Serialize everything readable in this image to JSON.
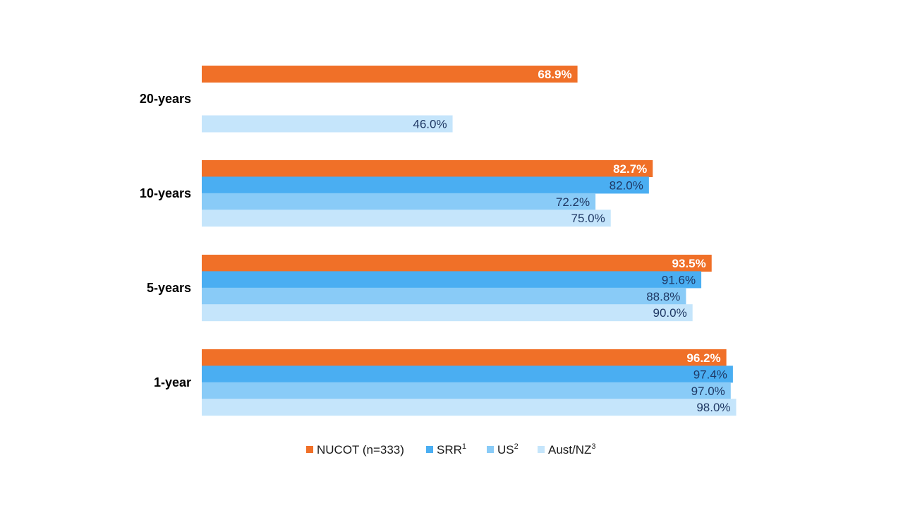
{
  "chart_data": {
    "type": "bar",
    "orientation": "horizontal",
    "categories": [
      "20-years",
      "10-years",
      "5-years",
      "1-year"
    ],
    "xlim": [
      0,
      100
    ],
    "grid": false,
    "legend_position": "bottom",
    "series": [
      {
        "name": "NUCOT (n=333)",
        "name_main": "NUCOT (n=333)",
        "sup": "",
        "color": "#f07028",
        "label_color": "#ffffff",
        "label_bold": true,
        "values": [
          68.9,
          82.7,
          93.5,
          96.2
        ],
        "labels": [
          "68.9%",
          "82.7%",
          "93.5%",
          "96.2%"
        ]
      },
      {
        "name": "SRR1",
        "name_main": "SRR",
        "sup": "1",
        "color": "#4aaef2",
        "label_color": "#1f3864",
        "label_bold": false,
        "values": [
          null,
          82.0,
          91.6,
          97.4
        ],
        "labels": [
          "",
          "82.0%",
          "91.6%",
          "97.4%"
        ]
      },
      {
        "name": "US2",
        "name_main": "US",
        "sup": "2",
        "color": "#89cbf7",
        "label_color": "#1f3864",
        "label_bold": false,
        "values": [
          null,
          72.2,
          88.8,
          97.0
        ],
        "labels": [
          "",
          "72.2%",
          "88.8%",
          "97.0%"
        ]
      },
      {
        "name": "Aust/NZ3",
        "name_main": "Aust/NZ",
        "sup": "3",
        "color": "#c5e5fb",
        "label_color": "#1f3864",
        "label_bold": false,
        "values": [
          46.0,
          75.0,
          90.0,
          98.0
        ],
        "labels": [
          "46.0%",
          "75.0%",
          "90.0%",
          "98.0%"
        ]
      }
    ]
  }
}
